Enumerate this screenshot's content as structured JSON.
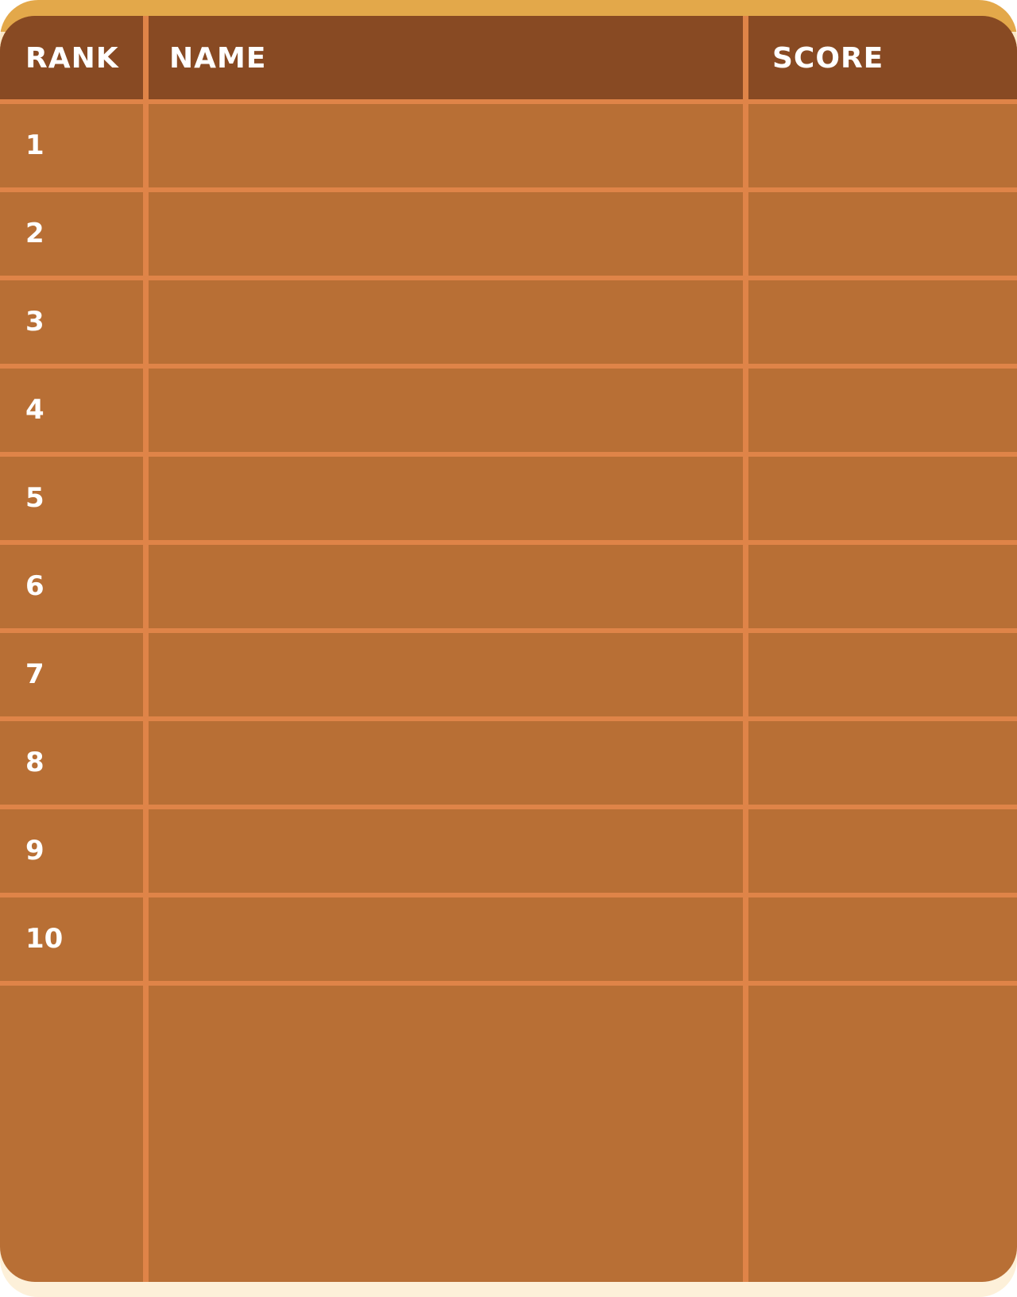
{
  "leaderboard": {
    "headers": {
      "rank": "RANK",
      "name": "NAME",
      "score": "SCORE"
    },
    "rows": [
      {
        "rank": "1",
        "name": "",
        "score": ""
      },
      {
        "rank": "2",
        "name": "",
        "score": ""
      },
      {
        "rank": "3",
        "name": "",
        "score": ""
      },
      {
        "rank": "4",
        "name": "",
        "score": ""
      },
      {
        "rank": "5",
        "name": "",
        "score": ""
      },
      {
        "rank": "6",
        "name": "",
        "score": ""
      },
      {
        "rank": "7",
        "name": "",
        "score": ""
      },
      {
        "rank": "8",
        "name": "",
        "score": ""
      },
      {
        "rank": "9",
        "name": "",
        "score": ""
      },
      {
        "rank": "10",
        "name": "",
        "score": ""
      }
    ]
  },
  "colors": {
    "frame_top": "#e3a84a",
    "frame_bottom": "#fdf0d9",
    "header_bg": "#884a23",
    "body_bg": "#b86f35",
    "grid_lines": "#df8448",
    "text": "#ffffff"
  }
}
